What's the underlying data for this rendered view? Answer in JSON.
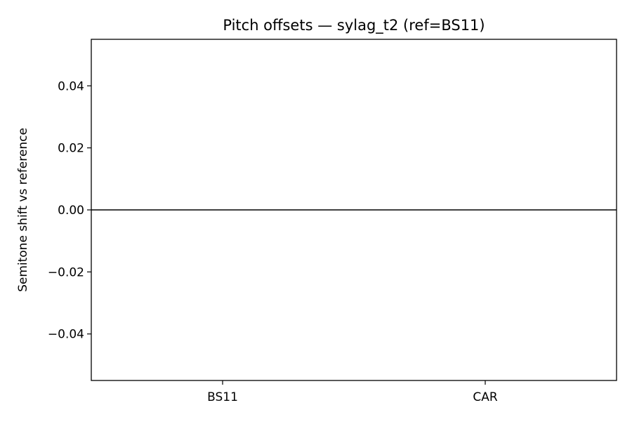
{
  "chart_data": {
    "type": "bar",
    "title": "Pitch offsets — sylag_t2 (ref=BS11)",
    "xlabel": "",
    "ylabel": "Semitone shift vs reference",
    "categories": [
      "BS11",
      "CAR"
    ],
    "values": [
      0.0,
      0.0
    ],
    "ylim": [
      -0.055,
      0.055
    ],
    "yticks": [
      0.04,
      0.02,
      0.0,
      -0.02,
      -0.04
    ],
    "ytick_labels": [
      "0.04",
      "0.02",
      "0.00",
      "−0.02",
      "−0.04"
    ],
    "reference_line": 0.0,
    "grid": false,
    "legend": "none",
    "colors": {
      "axes": "#000000",
      "background": "#ffffff",
      "reference_line": "#000000"
    }
  }
}
